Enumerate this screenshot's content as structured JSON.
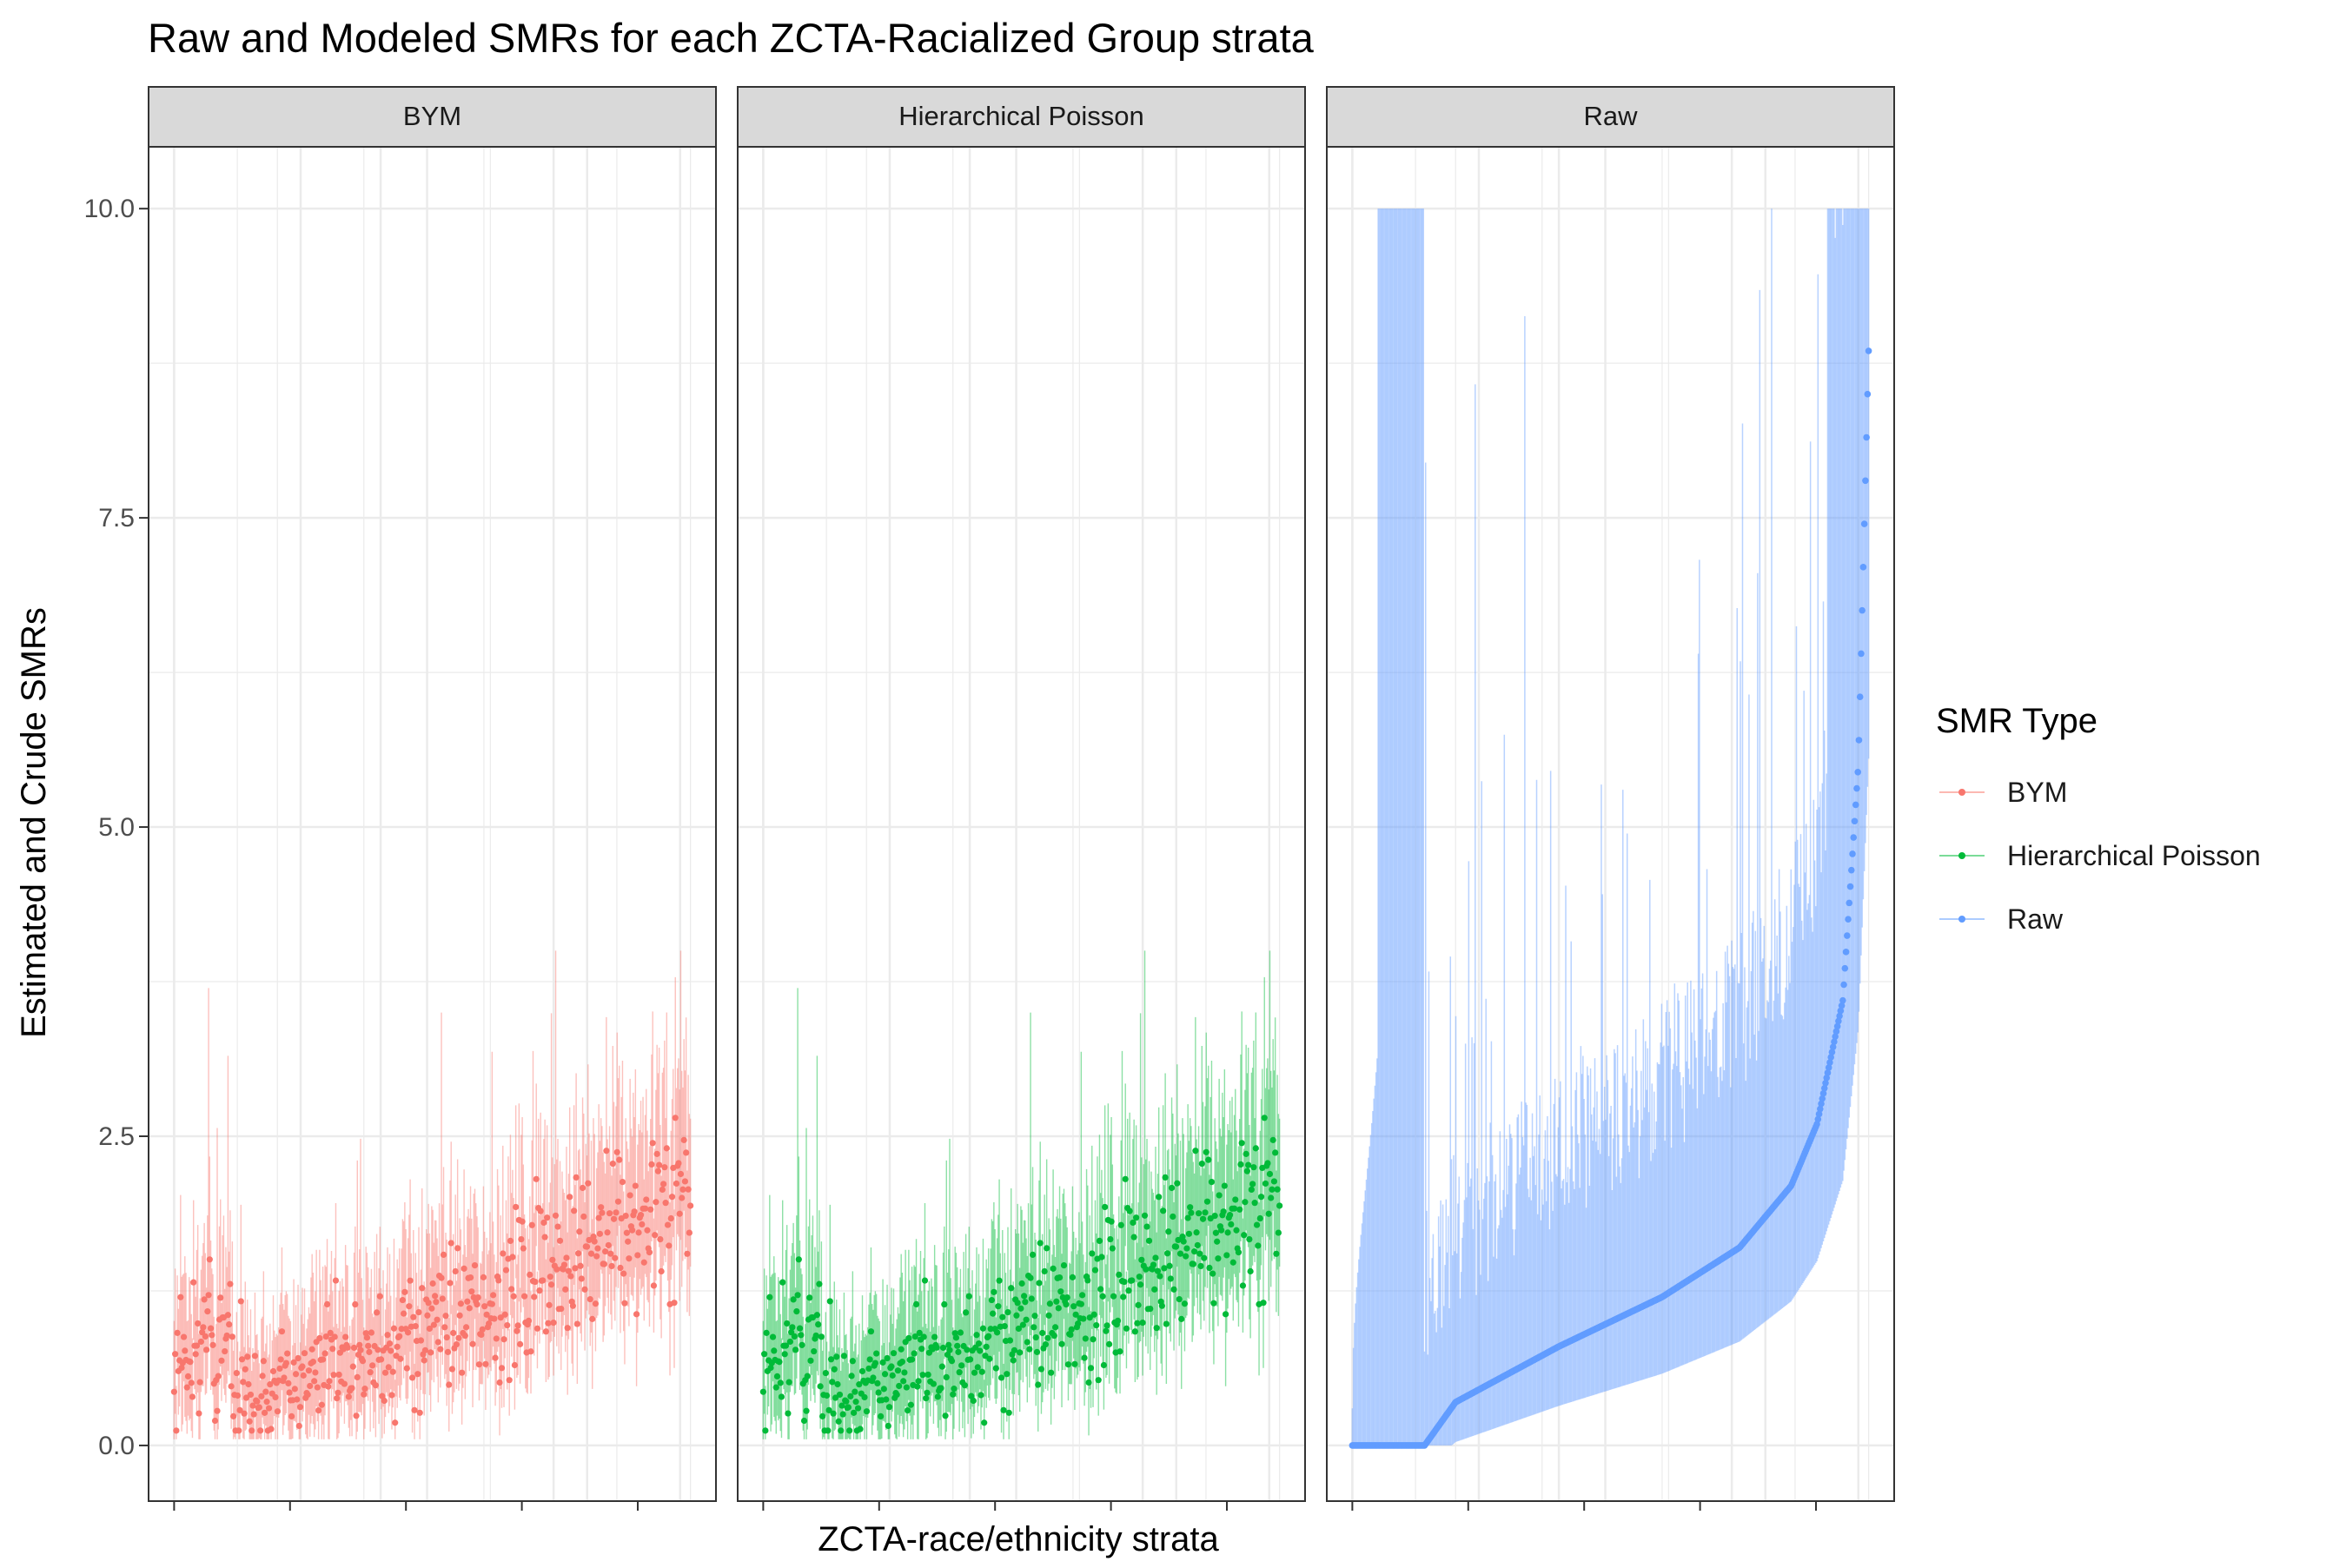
{
  "chart_data": {
    "type": "scatter",
    "title": "Raw and Modeled SMRs for each ZCTA-Racialized Group strata",
    "xlabel": "ZCTA-race/ethnicity strata",
    "ylabel": "Estimated and Crude SMRs",
    "ylim": [
      -0.45,
      10.5
    ],
    "yticks": [
      "0.0",
      "2.5",
      "5.0",
      "7.5",
      "10.0"
    ],
    "grid": true,
    "legend": {
      "title": "SMR Type",
      "position": "right",
      "entries": [
        "BYM",
        "Hierarchical Poisson",
        "Raw"
      ]
    },
    "colors": {
      "BYM": "#F8766D",
      "Hierarchical Poisson": "#00BA38",
      "Raw": "#619CFF",
      "strip_fill": "#D9D9D9",
      "grid_major": "#EBEBEB"
    },
    "panels": [
      {
        "strip": "BYM",
        "series": "BYM",
        "n_points": 480,
        "trend": {
          "x": [
            0,
            0.1,
            0.15,
            0.2,
            0.4,
            0.6,
            0.8,
            1.0
          ],
          "y": [
            0.55,
            0.85,
            0.35,
            0.45,
            0.75,
            1.1,
            1.55,
            2.1
          ]
        },
        "ci_max": 4.0,
        "max_point": 3.2
      },
      {
        "strip": "Hierarchical Poisson",
        "series": "Hierarchical Poisson",
        "n_points": 480,
        "trend": {
          "x": [
            0,
            0.1,
            0.15,
            0.2,
            0.4,
            0.6,
            0.8,
            1.0
          ],
          "y": [
            0.55,
            0.85,
            0.35,
            0.45,
            0.75,
            1.1,
            1.55,
            2.1
          ]
        },
        "ci_max": 4.0,
        "max_point": 3.2
      },
      {
        "strip": "Raw",
        "series": "Raw",
        "n_points": 480,
        "zero_fraction": 0.14,
        "sorted": true,
        "trend": {
          "x": [
            0.14,
            0.2,
            0.4,
            0.6,
            0.75,
            0.85,
            0.9,
            0.95,
            0.98,
            1.0
          ],
          "y": [
            0.0,
            0.35,
            0.8,
            1.2,
            1.6,
            2.1,
            2.6,
            3.6,
            5.5,
            8.85
          ]
        },
        "ci_max": 10.0,
        "max_point": 8.85
      }
    ]
  }
}
